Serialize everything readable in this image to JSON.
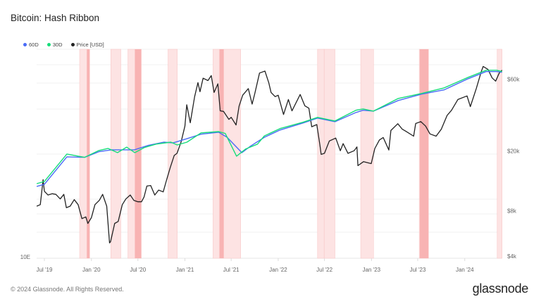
{
  "title": "Bitcoin: Hash Ribbon",
  "footer": "© 2024 Glassnode. All Rights Reserved.",
  "logo": "glassnode",
  "colors": {
    "60D": "#4a6cf7",
    "30D": "#16dd7a",
    "price": "#222222",
    "band_light": "#fde3e3",
    "band_dark": "#f8b3b3"
  },
  "chart_data": {
    "type": "line",
    "title": "Bitcoin: Hash Ribbon",
    "legend_position": "top-left",
    "legend": [
      {
        "name": "60D",
        "color": "#4a6cf7"
      },
      {
        "name": "30D",
        "color": "#16dd7a"
      },
      {
        "name": "Price [USD]",
        "color": "#222222"
      }
    ],
    "x_ticks": [
      "Jul '19",
      "Jan '20",
      "Jul '20",
      "Jan '21",
      "Jul '21",
      "Jan '22",
      "Jul '22",
      "Jan '23",
      "Jul '23",
      "Jan '24"
    ],
    "x_tick_dates": [
      "2019-07-01",
      "2020-01-01",
      "2020-07-01",
      "2021-01-01",
      "2021-07-01",
      "2022-01-01",
      "2022-07-01",
      "2023-01-01",
      "2023-07-01",
      "2024-01-01"
    ],
    "x_range": [
      "2019-06-01",
      "2024-05-26"
    ],
    "left_axis": {
      "scale": "log",
      "ticks": [
        "10E"
      ],
      "tick_values": [
        10
      ],
      "range": [
        10,
        870
      ]
    },
    "right_axis": {
      "scale": "log",
      "ticks": [
        "$60k",
        "$20k",
        "$8k",
        "$4k"
      ],
      "tick_values": [
        60000,
        20000,
        8000,
        4000
      ],
      "range": [
        4000,
        95000
      ]
    },
    "grid": true,
    "capitulation_bands": [
      {
        "start": "2019-11-16",
        "end": "2019-12-25"
      },
      {
        "start": "2020-03-17",
        "end": "2020-04-25"
      },
      {
        "start": "2020-05-23",
        "end": "2020-07-14"
      },
      {
        "start": "2020-10-27",
        "end": "2020-12-02"
      },
      {
        "start": "2021-04-21",
        "end": "2021-08-07"
      },
      {
        "start": "2022-06-04",
        "end": "2022-06-30"
      },
      {
        "start": "2022-06-30",
        "end": "2022-08-11"
      },
      {
        "start": "2022-11-20",
        "end": "2023-01-09"
      },
      {
        "start": "2023-07-07",
        "end": "2023-08-12"
      },
      {
        "start": "2024-05-07",
        "end": "2024-05-26"
      }
    ],
    "buy_signal_bands": [
      {
        "start": "2019-12-14",
        "end": "2019-12-25"
      },
      {
        "start": "2020-06-19",
        "end": "2020-07-14"
      },
      {
        "start": "2021-05-16",
        "end": "2021-06-02"
      },
      {
        "start": "2023-07-09",
        "end": "2023-08-12"
      }
    ],
    "series": [
      {
        "name": "60D",
        "axis": "left",
        "points": [
          [
            "2019-06-01",
            45.5
          ],
          [
            "2019-07-01",
            47.6
          ],
          [
            "2019-09-27",
            86
          ],
          [
            "2019-12-05",
            85
          ],
          [
            "2020-01-30",
            96
          ],
          [
            "2020-03-20",
            100
          ],
          [
            "2020-06-17",
            100
          ],
          [
            "2020-08-11",
            110
          ],
          [
            "2020-10-10",
            118
          ],
          [
            "2020-11-15",
            116
          ],
          [
            "2021-01-09",
            127
          ],
          [
            "2021-03-05",
            140
          ],
          [
            "2021-05-13",
            146
          ],
          [
            "2021-06-15",
            131
          ],
          [
            "2021-08-12",
            94
          ],
          [
            "2021-09-14",
            108
          ],
          [
            "2021-11-08",
            131
          ],
          [
            "2022-01-08",
            153
          ],
          [
            "2022-04-08",
            178
          ],
          [
            "2022-06-04",
            198
          ],
          [
            "2022-08-11",
            183
          ],
          [
            "2022-11-01",
            223
          ],
          [
            "2022-11-29",
            234
          ],
          [
            "2023-01-09",
            230
          ],
          [
            "2023-04-16",
            289
          ],
          [
            "2023-07-16",
            331
          ],
          [
            "2023-10-12",
            363
          ],
          [
            "2024-01-15",
            462
          ],
          [
            "2024-03-25",
            538
          ],
          [
            "2024-05-05",
            538
          ],
          [
            "2024-05-26",
            530
          ]
        ]
      },
      {
        "name": "30D",
        "axis": "left",
        "points": [
          [
            "2019-06-01",
            48.3
          ],
          [
            "2019-07-01",
            50.6
          ],
          [
            "2019-09-27",
            91.3
          ],
          [
            "2019-12-05",
            85
          ],
          [
            "2020-01-30",
            98.5
          ],
          [
            "2020-03-06",
            103
          ],
          [
            "2020-04-12",
            94.1
          ],
          [
            "2020-05-18",
            106
          ],
          [
            "2020-06-19",
            94.1
          ],
          [
            "2020-07-26",
            105
          ],
          [
            "2020-09-10",
            113
          ],
          [
            "2020-11-07",
            118
          ],
          [
            "2020-12-02",
            111
          ],
          [
            "2021-01-09",
            118
          ],
          [
            "2021-03-05",
            144
          ],
          [
            "2021-05-13",
            148
          ],
          [
            "2021-06-08",
            142
          ],
          [
            "2021-07-22",
            87.3
          ],
          [
            "2021-08-27",
            102
          ],
          [
            "2021-10-12",
            113
          ],
          [
            "2021-11-08",
            135
          ],
          [
            "2022-01-08",
            158
          ],
          [
            "2022-04-08",
            181
          ],
          [
            "2022-06-04",
            201
          ],
          [
            "2022-08-11",
            186
          ],
          [
            "2022-11-01",
            234
          ],
          [
            "2022-11-29",
            241
          ],
          [
            "2023-01-09",
            230
          ],
          [
            "2023-04-16",
            302
          ],
          [
            "2023-07-16",
            336
          ],
          [
            "2023-10-12",
            379
          ],
          [
            "2024-01-15",
            476
          ],
          [
            "2024-03-25",
            554
          ],
          [
            "2024-05-05",
            554
          ],
          [
            "2024-05-26",
            538
          ]
        ]
      },
      {
        "name": "Price [USD]",
        "axis": "right",
        "points": [
          [
            "2019-06-01",
            8600
          ],
          [
            "2019-06-15",
            8800
          ],
          [
            "2019-06-26",
            12900
          ],
          [
            "2019-07-01",
            10800
          ],
          [
            "2019-07-15",
            10200
          ],
          [
            "2019-08-01",
            10400
          ],
          [
            "2019-08-15",
            10300
          ],
          [
            "2019-09-01",
            9600
          ],
          [
            "2019-09-15",
            10300
          ],
          [
            "2019-09-25",
            8400
          ],
          [
            "2019-10-10",
            8600
          ],
          [
            "2019-10-26",
            9500
          ],
          [
            "2019-11-10",
            8800
          ],
          [
            "2019-11-25",
            7100
          ],
          [
            "2019-12-10",
            7300
          ],
          [
            "2019-12-18",
            6600
          ],
          [
            "2020-01-01",
            7200
          ],
          [
            "2020-01-15",
            8800
          ],
          [
            "2020-02-01",
            9400
          ],
          [
            "2020-02-14",
            10300
          ],
          [
            "2020-03-01",
            8600
          ],
          [
            "2020-03-12",
            4900
          ],
          [
            "2020-03-16",
            5000
          ],
          [
            "2020-04-01",
            6600
          ],
          [
            "2020-04-15",
            6800
          ],
          [
            "2020-05-01",
            8800
          ],
          [
            "2020-05-15",
            9600
          ],
          [
            "2020-06-01",
            10200
          ],
          [
            "2020-06-15",
            9400
          ],
          [
            "2020-07-01",
            9200
          ],
          [
            "2020-07-15",
            9200
          ],
          [
            "2020-07-25",
            9900
          ],
          [
            "2020-08-05",
            11700
          ],
          [
            "2020-08-20",
            11800
          ],
          [
            "2020-09-05",
            10200
          ],
          [
            "2020-09-20",
            11000
          ],
          [
            "2020-10-08",
            10700
          ],
          [
            "2020-10-21",
            12800
          ],
          [
            "2020-11-05",
            15600
          ],
          [
            "2020-11-20",
            18700
          ],
          [
            "2020-12-01",
            19300
          ],
          [
            "2020-12-17",
            23000
          ],
          [
            "2021-01-01",
            29300
          ],
          [
            "2021-01-08",
            40600
          ],
          [
            "2021-01-22",
            30800
          ],
          [
            "2021-02-08",
            46000
          ],
          [
            "2021-02-21",
            57000
          ],
          [
            "2021-03-01",
            49600
          ],
          [
            "2021-03-13",
            61000
          ],
          [
            "2021-04-01",
            58800
          ],
          [
            "2021-04-14",
            63500
          ],
          [
            "2021-04-25",
            49000
          ],
          [
            "2021-05-10",
            56000
          ],
          [
            "2021-05-19",
            37000
          ],
          [
            "2021-06-01",
            36700
          ],
          [
            "2021-06-22",
            32500
          ],
          [
            "2021-07-01",
            33500
          ],
          [
            "2021-07-20",
            29800
          ],
          [
            "2021-08-01",
            39800
          ],
          [
            "2021-08-15",
            47000
          ],
          [
            "2021-09-06",
            52000
          ],
          [
            "2021-09-21",
            41000
          ],
          [
            "2021-10-01",
            48000
          ],
          [
            "2021-10-20",
            66000
          ],
          [
            "2021-11-10",
            68000
          ],
          [
            "2021-11-25",
            57000
          ],
          [
            "2021-12-04",
            49000
          ],
          [
            "2021-12-20",
            46000
          ],
          [
            "2022-01-01",
            47000
          ],
          [
            "2022-01-22",
            35000
          ],
          [
            "2022-02-10",
            44000
          ],
          [
            "2022-02-24",
            37000
          ],
          [
            "2022-03-28",
            47500
          ],
          [
            "2022-04-15",
            40000
          ],
          [
            "2022-05-01",
            38500
          ],
          [
            "2022-05-12",
            29000
          ],
          [
            "2022-06-01",
            30000
          ],
          [
            "2022-06-13",
            22000
          ],
          [
            "2022-06-18",
            19000
          ],
          [
            "2022-07-01",
            19300
          ],
          [
            "2022-07-20",
            23300
          ],
          [
            "2022-08-14",
            24400
          ],
          [
            "2022-09-01",
            20100
          ],
          [
            "2022-09-12",
            22400
          ],
          [
            "2022-10-01",
            19300
          ],
          [
            "2022-10-25",
            20100
          ],
          [
            "2022-11-05",
            21300
          ],
          [
            "2022-11-09",
            16000
          ],
          [
            "2022-12-01",
            17000
          ],
          [
            "2022-12-31",
            16500
          ],
          [
            "2023-01-14",
            20800
          ],
          [
            "2023-02-01",
            23700
          ],
          [
            "2023-02-16",
            24600
          ],
          [
            "2023-03-10",
            20300
          ],
          [
            "2023-03-18",
            27400
          ],
          [
            "2023-04-14",
            30400
          ],
          [
            "2023-05-01",
            28000
          ],
          [
            "2023-05-15",
            27100
          ],
          [
            "2023-06-15",
            25100
          ],
          [
            "2023-06-23",
            30500
          ],
          [
            "2023-07-13",
            31400
          ],
          [
            "2023-08-01",
            29300
          ],
          [
            "2023-08-18",
            26000
          ],
          [
            "2023-09-11",
            25100
          ],
          [
            "2023-10-01",
            27900
          ],
          [
            "2023-10-24",
            34500
          ],
          [
            "2023-11-10",
            37300
          ],
          [
            "2023-12-05",
            44000
          ],
          [
            "2024-01-10",
            46500
          ],
          [
            "2024-01-23",
            39500
          ],
          [
            "2024-02-15",
            52000
          ],
          [
            "2024-03-05",
            67000
          ],
          [
            "2024-03-13",
            73000
          ],
          [
            "2024-04-01",
            69700
          ],
          [
            "2024-04-17",
            61300
          ],
          [
            "2024-05-01",
            58300
          ],
          [
            "2024-05-15",
            66000
          ],
          [
            "2024-05-26",
            69000
          ]
        ]
      }
    ]
  }
}
